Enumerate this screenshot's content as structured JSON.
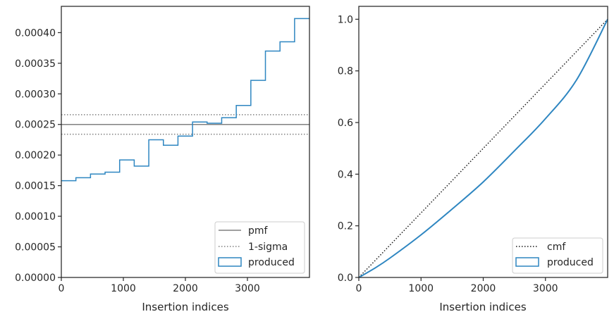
{
  "chart_data": [
    {
      "type": "step",
      "xlabel": "Insertion indices",
      "ylabel": "",
      "xlim": [
        0,
        4000
      ],
      "ylim": [
        0,
        0.000443
      ],
      "xticks": [
        0,
        1000,
        2000,
        3000
      ],
      "xtick_labels": [
        "0",
        "1000",
        "2000",
        "3000"
      ],
      "yticks": [
        0,
        5e-05,
        0.0001,
        0.00015,
        0.0002,
        0.00025,
        0.0003,
        0.00035,
        0.0004
      ],
      "ytick_labels": [
        "0.00000",
        "0.00005",
        "0.00010",
        "0.00015",
        "0.00020",
        "0.00025",
        "0.00030",
        "0.00035",
        "0.00040"
      ],
      "grid": false,
      "legend_position": "bottom-right",
      "reference_lines": {
        "pmf": 0.00025,
        "sigma_upper": 0.000266,
        "sigma_lower": 0.000234
      },
      "series": [
        {
          "name": "produced",
          "bin_edges": [
            0,
            235,
            470,
            705,
            940,
            1175,
            1410,
            1645,
            1880,
            2115,
            2350,
            2585,
            2820,
            3055,
            3290,
            3525,
            3760,
            4000
          ],
          "values": [
            0.000158,
            0.000163,
            0.000169,
            0.000172,
            0.000192,
            0.000182,
            0.000225,
            0.000216,
            0.000231,
            0.000254,
            0.000252,
            0.000261,
            0.000281,
            0.000322,
            0.00037,
            0.000385,
            0.000423
          ]
        }
      ],
      "legend": [
        "pmf",
        "1-sigma",
        "produced"
      ],
      "colors": {
        "pmf": "#808080",
        "sigma": "#808080",
        "produced": "#2e86c1"
      }
    },
    {
      "type": "line",
      "xlabel": "Insertion indices",
      "ylabel": "",
      "xlim": [
        0,
        4000
      ],
      "ylim": [
        0,
        1.05
      ],
      "xticks": [
        0,
        1000,
        2000,
        3000
      ],
      "xtick_labels": [
        "0",
        "1000",
        "2000",
        "3000"
      ],
      "yticks": [
        0,
        0.2,
        0.4,
        0.6,
        0.8,
        1.0
      ],
      "ytick_labels": [
        "0.0",
        "0.2",
        "0.4",
        "0.6",
        "0.8",
        "1.0"
      ],
      "grid": false,
      "legend_position": "bottom-right",
      "series": [
        {
          "name": "cmf",
          "x": [
            0,
            4000
          ],
          "y": [
            0,
            1
          ]
        },
        {
          "name": "produced",
          "x": [
            0,
            250,
            500,
            1000,
            1500,
            2000,
            2500,
            3000,
            3500,
            4000
          ],
          "y": [
            0,
            0.035,
            0.075,
            0.165,
            0.265,
            0.37,
            0.49,
            0.615,
            0.765,
            1.0
          ]
        }
      ],
      "legend": [
        "cmf",
        "produced"
      ],
      "colors": {
        "cmf": "#1a1a1a",
        "produced": "#2e86c1"
      }
    }
  ]
}
